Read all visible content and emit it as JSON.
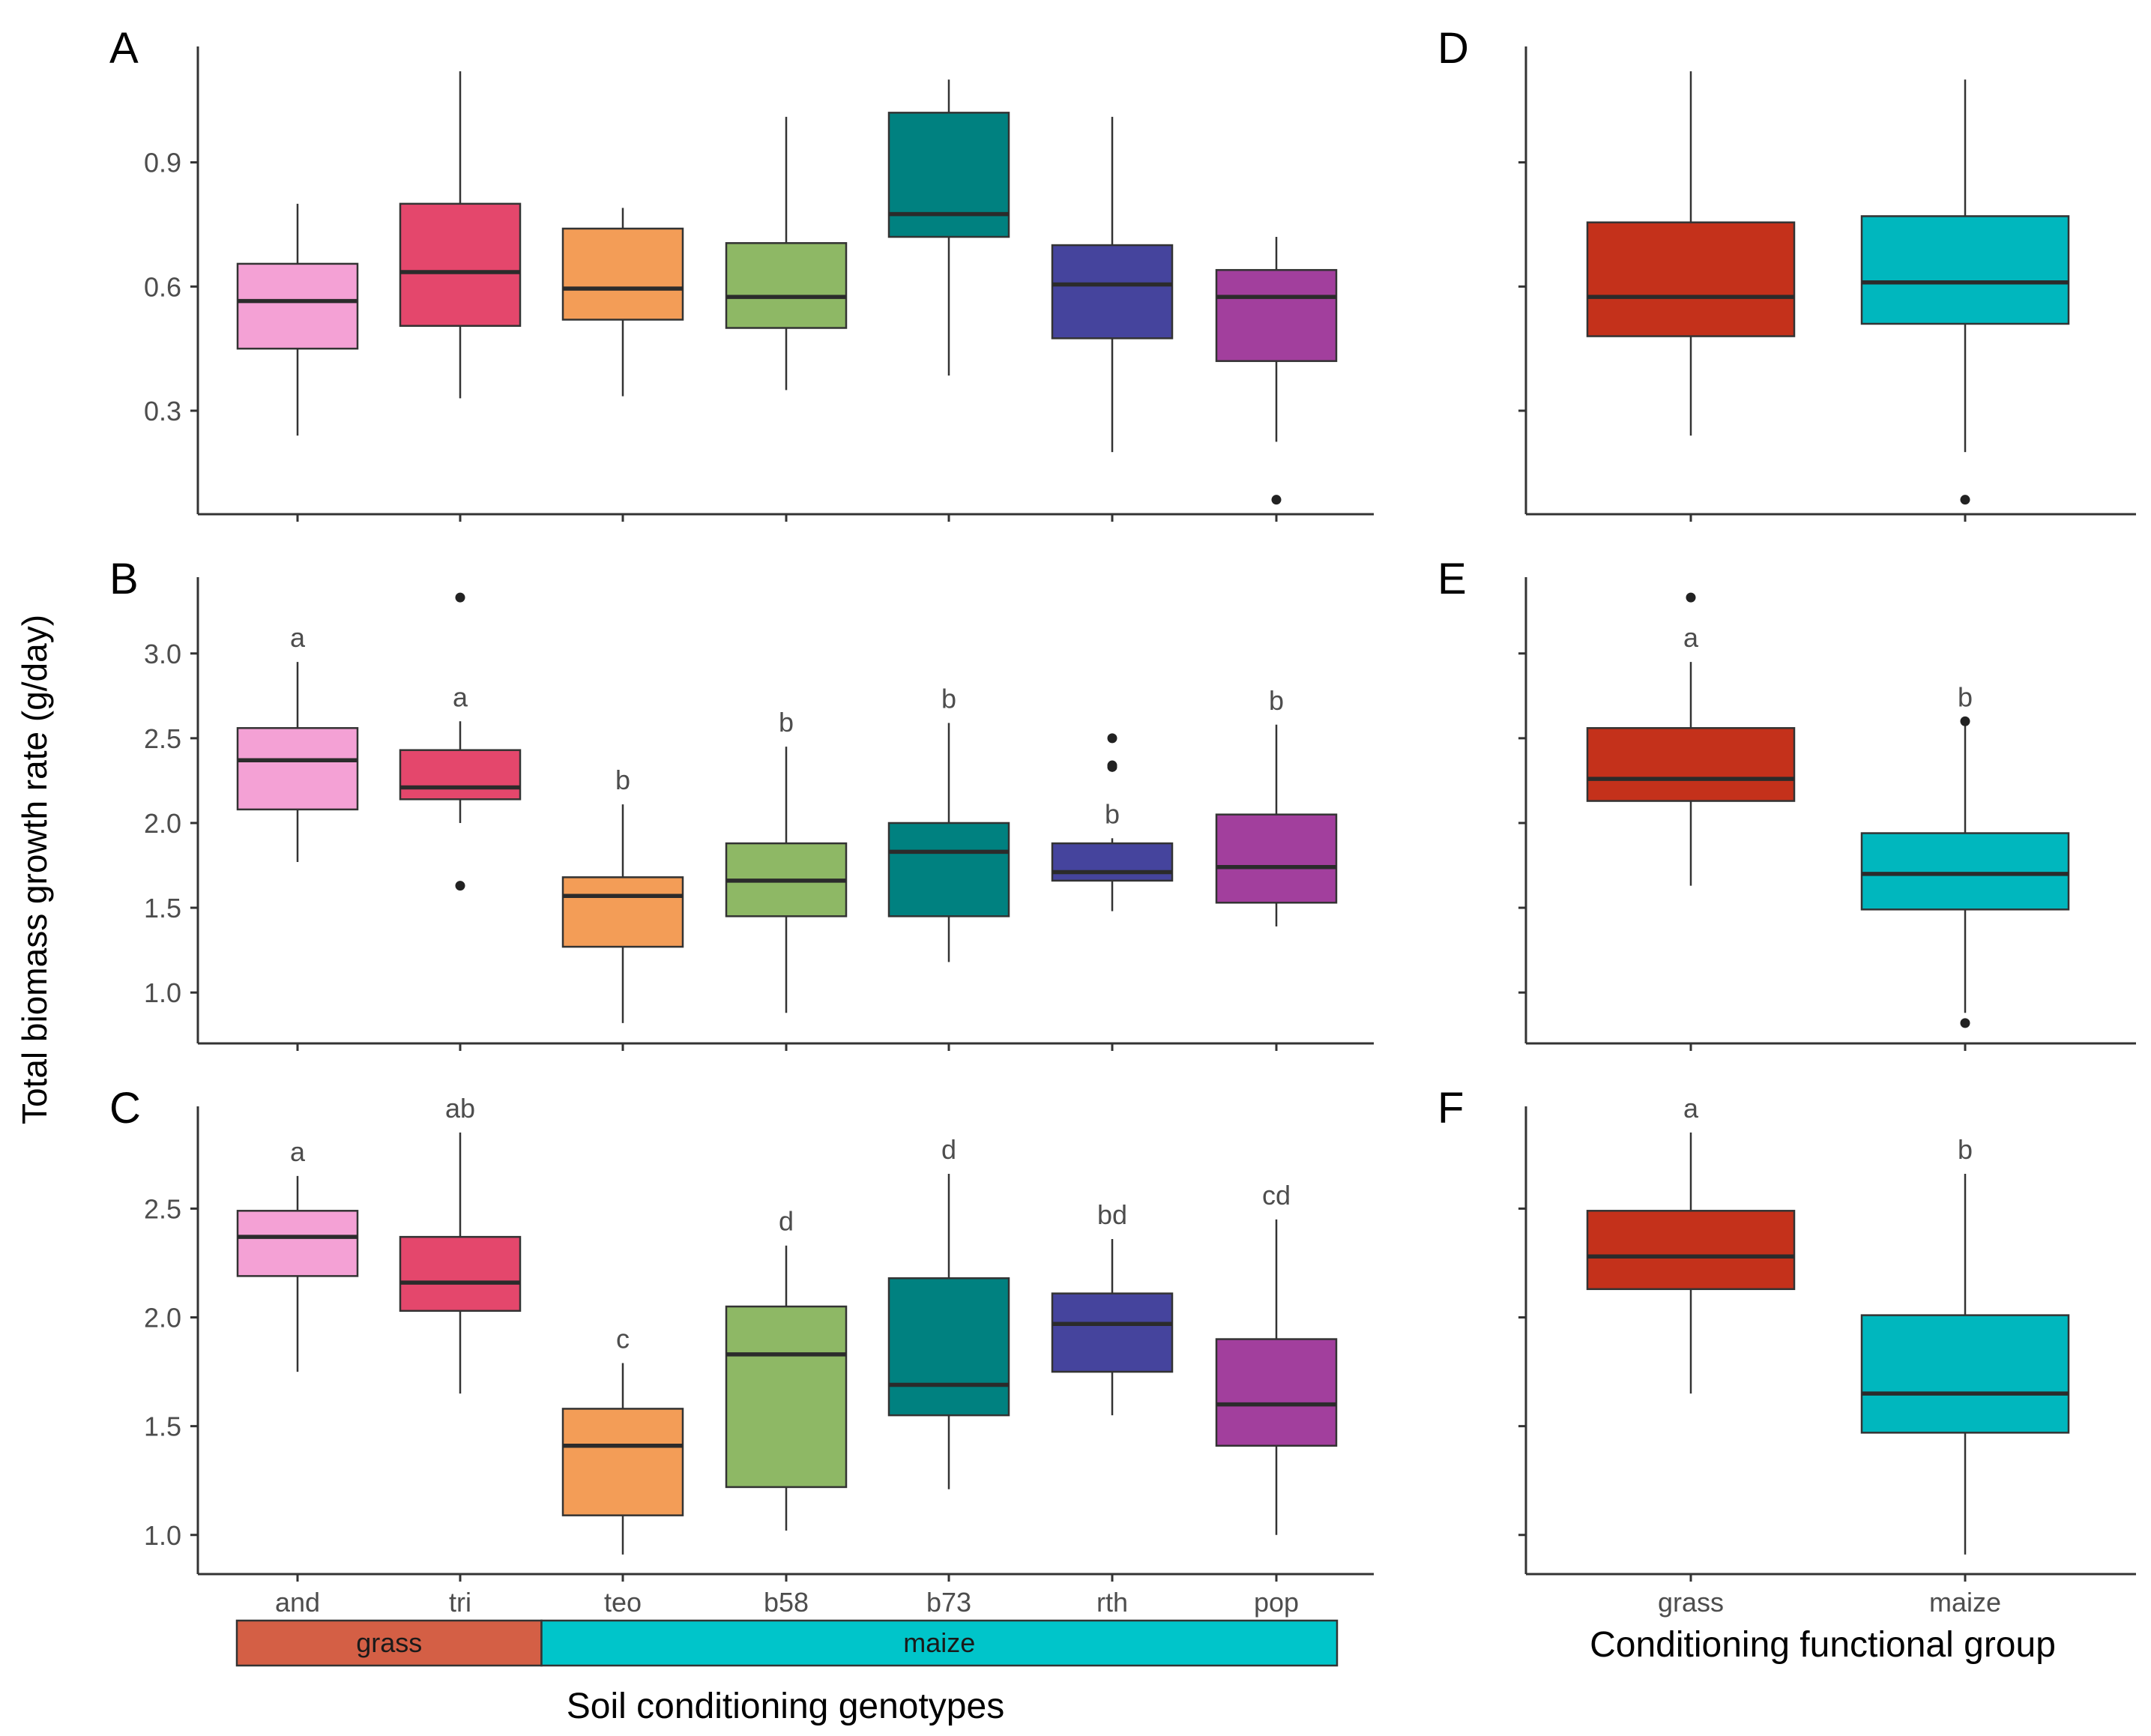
{
  "figure": {
    "y_axis_title": "Total biomass growth rate (g/day)",
    "left_x_title": "Soil conditioning genotypes",
    "right_x_title": "Conditioning functional group",
    "group_bar": [
      {
        "label": "grass",
        "color": "#D45F45",
        "span": [
          "and",
          "tri"
        ]
      },
      {
        "label": "maize",
        "color": "#00C5CA",
        "span": [
          "teo",
          "b58",
          "b73",
          "rth",
          "pop"
        ]
      }
    ]
  },
  "chart_data": [
    {
      "panel": "A",
      "type": "box",
      "categories": [
        "and",
        "tri",
        "teo",
        "b58",
        "b73",
        "rth",
        "pop"
      ],
      "colors": [
        "#F4A1D5",
        "#E4476C",
        "#F39D57",
        "#8EB865",
        "#008180",
        "#45449D",
        "#A23F9D"
      ],
      "ylim": [
        0.05,
        1.18
      ],
      "yticks": [
        "0.3",
        "0.6",
        "0.9"
      ],
      "show_xticklabels": false,
      "boxes": [
        {
          "whisker_low": 0.24,
          "q1": 0.45,
          "median": 0.565,
          "q3": 0.655,
          "whisker_high": 0.8,
          "outliers": [],
          "letter": ""
        },
        {
          "whisker_low": 0.33,
          "q1": 0.505,
          "median": 0.635,
          "q3": 0.8,
          "whisker_high": 1.12,
          "outliers": [],
          "letter": ""
        },
        {
          "whisker_low": 0.335,
          "q1": 0.52,
          "median": 0.595,
          "q3": 0.74,
          "whisker_high": 0.79,
          "outliers": [],
          "letter": ""
        },
        {
          "whisker_low": 0.35,
          "q1": 0.5,
          "median": 0.575,
          "q3": 0.705,
          "whisker_high": 1.01,
          "outliers": [],
          "letter": ""
        },
        {
          "whisker_low": 0.385,
          "q1": 0.72,
          "median": 0.775,
          "q3": 1.02,
          "whisker_high": 1.1,
          "outliers": [],
          "letter": ""
        },
        {
          "whisker_low": 0.2,
          "q1": 0.475,
          "median": 0.605,
          "q3": 0.7,
          "whisker_high": 1.01,
          "outliers": [],
          "letter": ""
        },
        {
          "whisker_low": 0.225,
          "q1": 0.42,
          "median": 0.575,
          "q3": 0.64,
          "whisker_high": 0.72,
          "outliers": [
            0.085
          ],
          "letter": ""
        }
      ]
    },
    {
      "panel": "B",
      "type": "box",
      "categories": [
        "and",
        "tri",
        "teo",
        "b58",
        "b73",
        "rth",
        "pop"
      ],
      "colors": [
        "#F4A1D5",
        "#E4476C",
        "#F39D57",
        "#8EB865",
        "#008180",
        "#45449D",
        "#A23F9D"
      ],
      "ylim": [
        0.7,
        3.45
      ],
      "yticks": [
        "1.0",
        "1.5",
        "2.0",
        "2.5",
        "3.0"
      ],
      "show_xticklabels": false,
      "boxes": [
        {
          "whisker_low": 1.77,
          "q1": 2.08,
          "median": 2.37,
          "q3": 2.56,
          "whisker_high": 2.95,
          "outliers": [],
          "letter": "a"
        },
        {
          "whisker_low": 2.0,
          "q1": 2.14,
          "median": 2.21,
          "q3": 2.43,
          "whisker_high": 2.6,
          "outliers": [
            3.33,
            1.63
          ],
          "letter": "a"
        },
        {
          "whisker_low": 0.82,
          "q1": 1.27,
          "median": 1.57,
          "q3": 1.68,
          "whisker_high": 2.11,
          "outliers": [],
          "letter": "b"
        },
        {
          "whisker_low": 0.88,
          "q1": 1.45,
          "median": 1.66,
          "q3": 1.88,
          "whisker_high": 2.45,
          "outliers": [],
          "letter": "b"
        },
        {
          "whisker_low": 1.18,
          "q1": 1.45,
          "median": 1.83,
          "q3": 2.0,
          "whisker_high": 2.59,
          "outliers": [],
          "letter": "b"
        },
        {
          "whisker_low": 1.48,
          "q1": 1.66,
          "median": 1.71,
          "q3": 1.88,
          "whisker_high": 1.91,
          "outliers": [
            2.5,
            2.34,
            2.33
          ],
          "letter": "b"
        },
        {
          "whisker_low": 1.39,
          "q1": 1.53,
          "median": 1.74,
          "q3": 2.05,
          "whisker_high": 2.58,
          "outliers": [],
          "letter": "b"
        }
      ]
    },
    {
      "panel": "C",
      "type": "box",
      "categories": [
        "and",
        "tri",
        "teo",
        "b58",
        "b73",
        "rth",
        "pop"
      ],
      "colors": [
        "#F4A1D5",
        "#E4476C",
        "#F39D57",
        "#8EB865",
        "#008180",
        "#45449D",
        "#A23F9D"
      ],
      "ylim": [
        0.82,
        2.97
      ],
      "yticks": [
        "1.0",
        "1.5",
        "2.0",
        "2.5"
      ],
      "show_xticklabels": true,
      "boxes": [
        {
          "whisker_low": 1.75,
          "q1": 2.19,
          "median": 2.37,
          "q3": 2.49,
          "whisker_high": 2.65,
          "outliers": [],
          "letter": "a"
        },
        {
          "whisker_low": 1.65,
          "q1": 2.03,
          "median": 2.16,
          "q3": 2.37,
          "whisker_high": 2.85,
          "outliers": [],
          "letter": "ab"
        },
        {
          "whisker_low": 0.91,
          "q1": 1.09,
          "median": 1.41,
          "q3": 1.58,
          "whisker_high": 1.79,
          "outliers": [],
          "letter": "c"
        },
        {
          "whisker_low": 1.02,
          "q1": 1.22,
          "median": 1.83,
          "q3": 2.05,
          "whisker_high": 2.33,
          "outliers": [],
          "letter": "d"
        },
        {
          "whisker_low": 1.21,
          "q1": 1.55,
          "median": 1.69,
          "q3": 2.18,
          "whisker_high": 2.66,
          "outliers": [],
          "letter": "d"
        },
        {
          "whisker_low": 1.55,
          "q1": 1.75,
          "median": 1.97,
          "q3": 2.11,
          "whisker_high": 2.36,
          "outliers": [],
          "letter": "bd"
        },
        {
          "whisker_low": 1.0,
          "q1": 1.41,
          "median": 1.6,
          "q3": 1.9,
          "whisker_high": 2.45,
          "outliers": [],
          "letter": "cd"
        }
      ]
    },
    {
      "panel": "D",
      "type": "box",
      "categories": [
        "grass",
        "maize"
      ],
      "colors": [
        "#C4311B",
        "#00B7BE"
      ],
      "ylim": [
        0.05,
        1.18
      ],
      "yticks": [
        "",
        "",
        ""
      ],
      "show_xticklabels": false,
      "boxes": [
        {
          "whisker_low": 0.24,
          "q1": 0.48,
          "median": 0.575,
          "q3": 0.755,
          "whisker_high": 1.12,
          "outliers": [],
          "letter": ""
        },
        {
          "whisker_low": 0.2,
          "q1": 0.51,
          "median": 0.61,
          "q3": 0.77,
          "whisker_high": 1.1,
          "outliers": [
            0.085
          ],
          "letter": ""
        }
      ]
    },
    {
      "panel": "E",
      "type": "box",
      "categories": [
        "grass",
        "maize"
      ],
      "colors": [
        "#C4311B",
        "#00B7BE"
      ],
      "ylim": [
        0.7,
        3.45
      ],
      "yticks": [
        "",
        "",
        "",
        "",
        ""
      ],
      "show_xticklabels": false,
      "boxes": [
        {
          "whisker_low": 1.63,
          "q1": 2.13,
          "median": 2.26,
          "q3": 2.56,
          "whisker_high": 2.95,
          "outliers": [
            3.33
          ],
          "letter": "a"
        },
        {
          "whisker_low": 0.88,
          "q1": 1.49,
          "median": 1.7,
          "q3": 1.94,
          "whisker_high": 2.58,
          "outliers": [
            2.6,
            0.82
          ],
          "letter": "b"
        }
      ]
    },
    {
      "panel": "F",
      "type": "box",
      "categories": [
        "grass",
        "maize"
      ],
      "colors": [
        "#C4311B",
        "#00B7BE"
      ],
      "ylim": [
        0.82,
        2.97
      ],
      "yticks": [
        "",
        "",
        "",
        ""
      ],
      "show_xticklabels": true,
      "boxes": [
        {
          "whisker_low": 1.65,
          "q1": 2.13,
          "median": 2.28,
          "q3": 2.49,
          "whisker_high": 2.85,
          "outliers": [],
          "letter": "a"
        },
        {
          "whisker_low": 0.91,
          "q1": 1.47,
          "median": 1.65,
          "q3": 2.01,
          "whisker_high": 2.66,
          "outliers": [],
          "letter": "b"
        }
      ]
    }
  ]
}
